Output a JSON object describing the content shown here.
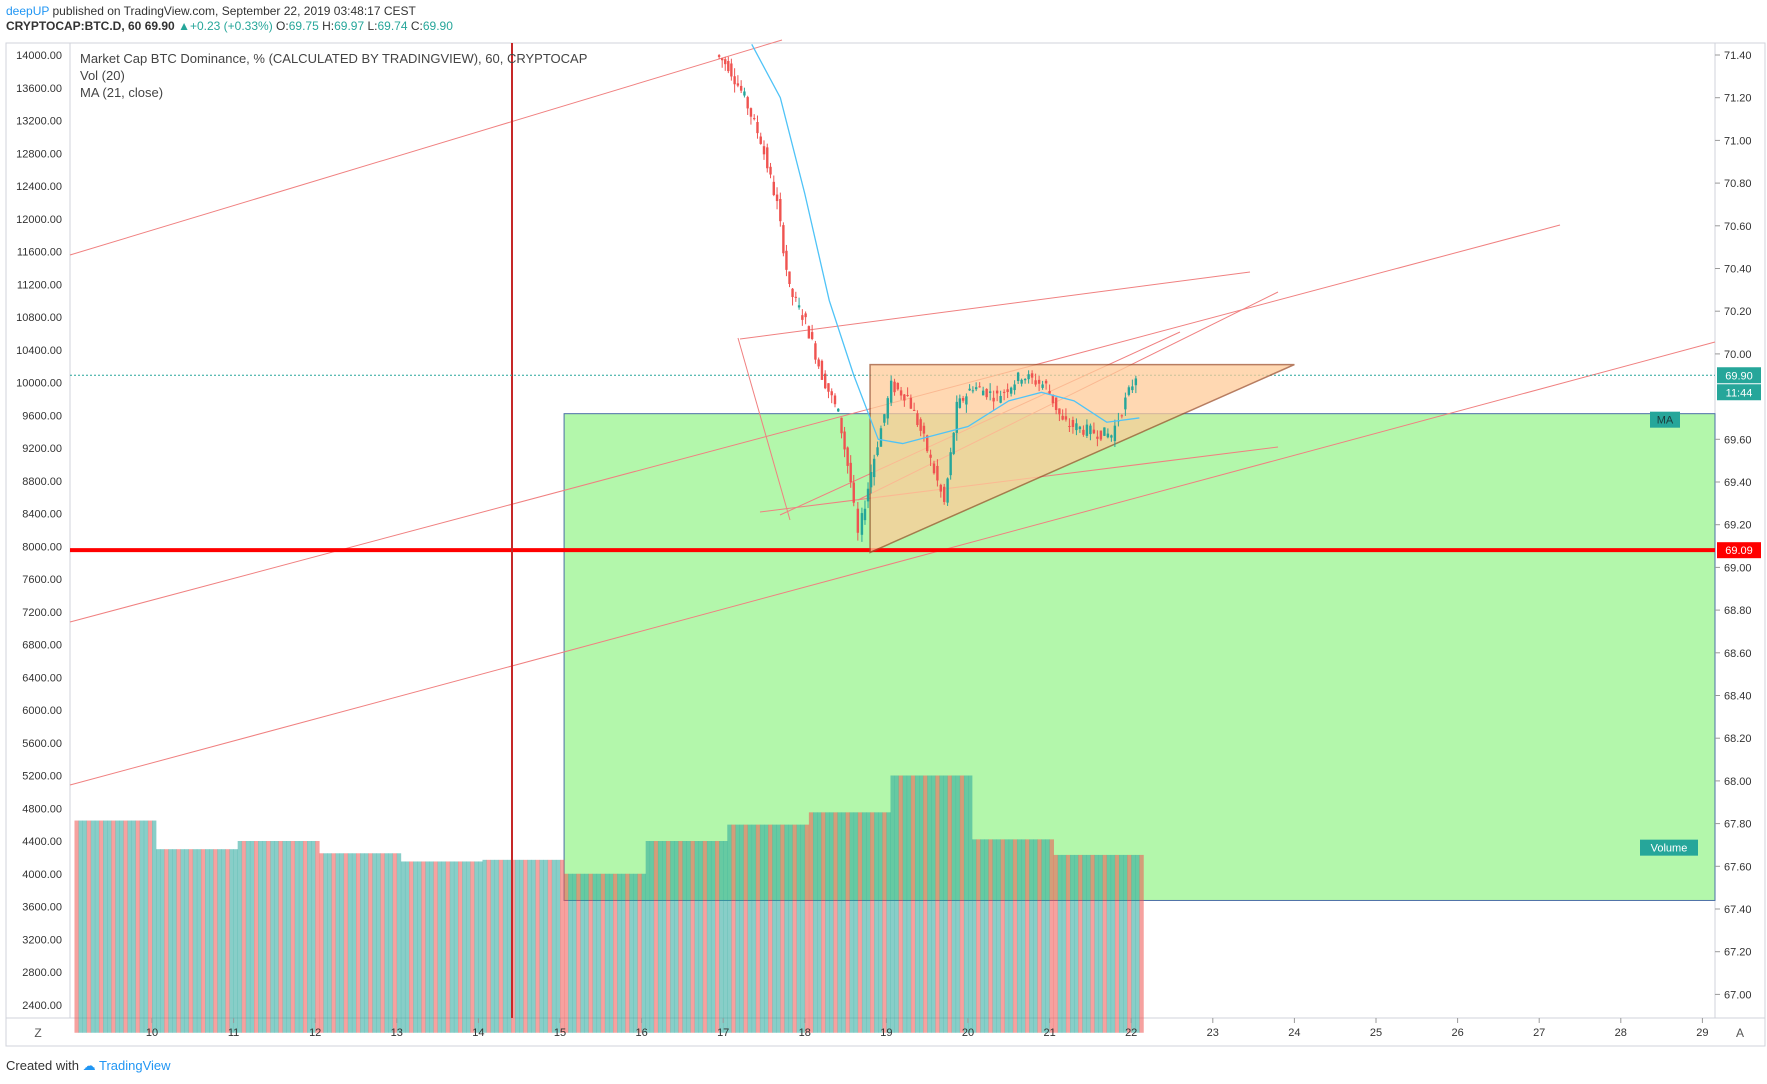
{
  "header": {
    "author": "deepUP",
    "published_text": "published on TradingView.com, September 22, 2019 03:48:17 CEST",
    "symbol": "CRYPTOCAP:BTC.D, 60",
    "last": "69.90",
    "change": "+0.23 (+0.33%)",
    "o_label": "O:",
    "o": "69.75",
    "h_label": "H:",
    "h": "69.97",
    "l_label": "L:",
    "l": "69.74",
    "c_label": "C:",
    "c": "69.90"
  },
  "legend": {
    "title": "Market Cap BTC Dominance, % (CALCULATED BY TRADINGVIEW), 60, CRYPTOCAP",
    "vol": "Vol (20)",
    "ma": "MA (21, close)"
  },
  "footer": {
    "created_with": "Created with",
    "brand": "TradingView"
  },
  "badges": {
    "price": "69.90",
    "countdown": "11:44",
    "ma": "MA",
    "support": "69.09",
    "volume": "Volume"
  },
  "corner_left": "Z",
  "corner_right": "A",
  "colors": {
    "up": "#26a69a",
    "down": "#ef5350",
    "zone_green": "#b3f7ab",
    "triangle": "#ffcc99",
    "redline": "#ff0000",
    "accent": "#2196f3"
  },
  "chart_data": {
    "type": "candlestick",
    "x_ticks": [
      "10",
      "11",
      "12",
      "13",
      "14",
      "15",
      "16",
      "17",
      "18",
      "19",
      "20",
      "21",
      "22",
      "23",
      "24",
      "25",
      "26",
      "27",
      "28",
      "29"
    ],
    "left_axis_ticks": [
      "14000.00",
      "13600.00",
      "13200.00",
      "12800.00",
      "12400.00",
      "12000.00",
      "11600.00",
      "11200.00",
      "10800.00",
      "10400.00",
      "10000.00",
      "9600.00",
      "9200.00",
      "8800.00",
      "8400.00",
      "8000.00",
      "7600.00",
      "7200.00",
      "6800.00",
      "6400.00",
      "6000.00",
      "5600.00",
      "5200.00",
      "4800.00",
      "4400.00",
      "4000.00",
      "3600.00",
      "3200.00",
      "2800.00",
      "2400.00"
    ],
    "right_axis_ticks": [
      "71.40",
      "71.20",
      "71.00",
      "70.80",
      "70.60",
      "70.40",
      "70.20",
      "70.00",
      "69.60",
      "69.40",
      "69.20",
      "69.00",
      "68.80",
      "68.60",
      "68.40",
      "68.20",
      "68.00",
      "67.80",
      "67.60",
      "67.40",
      "67.20",
      "67.00"
    ],
    "price_close_path": [
      {
        "day": 16.95,
        "v": 71.4
      },
      {
        "day": 17.1,
        "v": 71.35
      },
      {
        "day": 17.3,
        "v": 71.2
      },
      {
        "day": 17.5,
        "v": 71.0
      },
      {
        "day": 17.7,
        "v": 70.7
      },
      {
        "day": 17.85,
        "v": 70.3
      },
      {
        "day": 18.05,
        "v": 70.15
      },
      {
        "day": 18.25,
        "v": 69.9
      },
      {
        "day": 18.45,
        "v": 69.72
      },
      {
        "day": 18.6,
        "v": 69.4
      },
      {
        "day": 18.7,
        "v": 69.15
      },
      {
        "day": 18.85,
        "v": 69.45
      },
      {
        "day": 19.1,
        "v": 69.85
      },
      {
        "day": 19.3,
        "v": 69.8
      },
      {
        "day": 19.5,
        "v": 69.6
      },
      {
        "day": 19.75,
        "v": 69.3
      },
      {
        "day": 19.9,
        "v": 69.75
      },
      {
        "day": 20.1,
        "v": 69.85
      },
      {
        "day": 20.4,
        "v": 69.8
      },
      {
        "day": 20.7,
        "v": 69.9
      },
      {
        "day": 21.0,
        "v": 69.85
      },
      {
        "day": 21.2,
        "v": 69.68
      },
      {
        "day": 21.5,
        "v": 69.64
      },
      {
        "day": 21.8,
        "v": 69.62
      },
      {
        "day": 22.1,
        "v": 69.9
      }
    ],
    "ma_path": [
      {
        "day": 17.35,
        "v": 71.45
      },
      {
        "day": 17.7,
        "v": 71.2
      },
      {
        "day": 18.0,
        "v": 70.75
      },
      {
        "day": 18.3,
        "v": 70.25
      },
      {
        "day": 18.6,
        "v": 69.9
      },
      {
        "day": 18.9,
        "v": 69.6
      },
      {
        "day": 19.2,
        "v": 69.58
      },
      {
        "day": 19.6,
        "v": 69.62
      },
      {
        "day": 20.0,
        "v": 69.66
      },
      {
        "day": 20.5,
        "v": 69.78
      },
      {
        "day": 20.9,
        "v": 69.82
      },
      {
        "day": 21.3,
        "v": 69.78
      },
      {
        "day": 21.7,
        "v": 69.68
      },
      {
        "day": 22.1,
        "v": 69.7
      }
    ],
    "volume_blocks": [
      {
        "from": 9.05,
        "to": 10.05,
        "vol": 4650
      },
      {
        "from": 10.05,
        "to": 11.05,
        "vol": 4300
      },
      {
        "from": 11.05,
        "to": 12.05,
        "vol": 4400
      },
      {
        "from": 12.05,
        "to": 13.05,
        "vol": 4250
      },
      {
        "from": 13.05,
        "to": 14.05,
        "vol": 4150
      },
      {
        "from": 14.05,
        "to": 15.05,
        "vol": 4170
      },
      {
        "from": 15.05,
        "to": 16.05,
        "vol": 4000
      },
      {
        "from": 16.05,
        "to": 17.05,
        "vol": 4400
      },
      {
        "from": 17.05,
        "to": 18.05,
        "vol": 4600
      },
      {
        "from": 18.05,
        "to": 19.05,
        "vol": 4750
      },
      {
        "from": 19.05,
        "to": 20.05,
        "vol": 5200
      },
      {
        "from": 20.05,
        "to": 21.05,
        "vol": 4420
      },
      {
        "from": 21.05,
        "to": 22.15,
        "vol": 4230
      }
    ],
    "support_level": 69.09,
    "last_price": 69.9
  }
}
